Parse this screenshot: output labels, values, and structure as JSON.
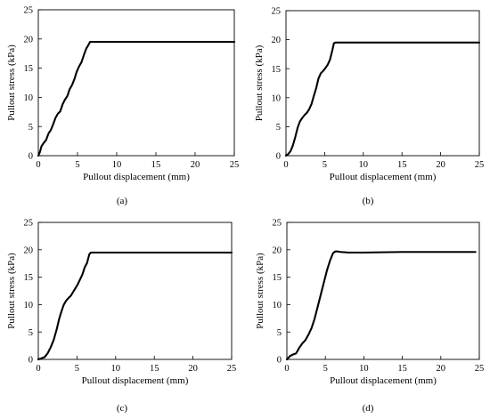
{
  "chart_data": [
    {
      "type": "line",
      "panel_label": "(a)",
      "xlabel": "Pullout displacement (mm)",
      "ylabel": "Pullout stress (kPa)",
      "xlim": [
        0,
        25
      ],
      "ylim": [
        0,
        25
      ],
      "x_ticks": [
        0,
        5,
        10,
        15,
        20,
        25
      ],
      "y_ticks": [
        0,
        5,
        10,
        15,
        20,
        25
      ],
      "grid": false,
      "series": [
        {
          "color": "#000000",
          "x": [
            0,
            0.2,
            0.4,
            0.7,
            1.0,
            1.3,
            1.6,
            1.9,
            2.2,
            2.5,
            2.8,
            3.1,
            3.4,
            3.7,
            4.0,
            4.3,
            4.6,
            4.9,
            5.2,
            5.5,
            5.8,
            6.1,
            6.4,
            6.6,
            6.8,
            8,
            10,
            15,
            20,
            25
          ],
          "y": [
            0,
            0.6,
            1.6,
            2.2,
            2.7,
            3.8,
            4.4,
            5.4,
            6.5,
            7.2,
            7.6,
            8.8,
            9.6,
            10.2,
            11.4,
            12.1,
            13.1,
            14.4,
            15.3,
            16.0,
            17.2,
            18.3,
            19.0,
            19.5,
            19.5,
            19.5,
            19.5,
            19.5,
            19.5,
            19.5
          ]
        }
      ]
    },
    {
      "type": "line",
      "panel_label": "(b)",
      "xlabel": "Pullout displacement (mm)",
      "ylabel": "Pullout stress (kPa)",
      "xlim": [
        0,
        25
      ],
      "ylim": [
        0,
        25
      ],
      "x_ticks": [
        0,
        5,
        10,
        15,
        20,
        25
      ],
      "y_ticks": [
        0,
        5,
        10,
        15,
        20,
        25
      ],
      "grid": false,
      "series": [
        {
          "color": "#000000",
          "x": [
            0,
            0.3,
            0.6,
            0.9,
            1.2,
            1.5,
            1.8,
            2.1,
            2.4,
            2.7,
            3.0,
            3.3,
            3.6,
            3.9,
            4.2,
            4.5,
            4.8,
            5.1,
            5.4,
            5.7,
            6.0,
            6.2,
            6.4,
            7,
            10,
            15,
            20,
            25
          ],
          "y": [
            0,
            0.3,
            0.8,
            1.8,
            3.2,
            4.8,
            5.9,
            6.5,
            7.0,
            7.4,
            8.0,
            8.9,
            10.3,
            11.6,
            13.3,
            14.2,
            14.6,
            15.1,
            15.7,
            16.6,
            18.2,
            19.4,
            19.5,
            19.5,
            19.5,
            19.5,
            19.5,
            19.5
          ]
        }
      ]
    },
    {
      "type": "line",
      "panel_label": "(c)",
      "xlabel": "Pullout displacement (mm)",
      "ylabel": "Pullout stress (kPa)",
      "xlim": [
        0,
        25
      ],
      "ylim": [
        0,
        25
      ],
      "x_ticks": [
        0,
        5,
        10,
        15,
        20,
        25
      ],
      "y_ticks": [
        0,
        5,
        10,
        15,
        20,
        25
      ],
      "grid": false,
      "series": [
        {
          "color": "#000000",
          "x": [
            0,
            0.4,
            0.8,
            1.2,
            1.6,
            2.0,
            2.4,
            2.7,
            3.0,
            3.3,
            3.6,
            3.9,
            4.2,
            4.5,
            4.8,
            5.1,
            5.4,
            5.7,
            6.0,
            6.3,
            6.6,
            6.8,
            7.5,
            10,
            15,
            20,
            25
          ],
          "y": [
            0,
            0.2,
            0.4,
            1.1,
            2.2,
            3.6,
            5.6,
            7.4,
            8.8,
            10.0,
            10.7,
            11.2,
            11.6,
            12.3,
            13.0,
            13.7,
            14.6,
            15.5,
            16.8,
            17.6,
            19.2,
            19.5,
            19.5,
            19.5,
            19.5,
            19.5,
            19.5
          ]
        }
      ]
    },
    {
      "type": "line",
      "panel_label": "(d)",
      "xlabel": "Pullout displacement (mm)",
      "ylabel": "Pullout stress (kPa)",
      "xlim": [
        0,
        25
      ],
      "ylim": [
        0,
        25
      ],
      "x_ticks": [
        0,
        5,
        10,
        15,
        20,
        25
      ],
      "y_ticks": [
        0,
        5,
        10,
        15,
        20,
        25
      ],
      "grid": false,
      "series": [
        {
          "color": "#000000",
          "x": [
            0,
            0.4,
            0.8,
            1.2,
            1.6,
            2.0,
            2.4,
            2.8,
            3.2,
            3.6,
            4.0,
            4.4,
            4.8,
            5.2,
            5.6,
            6.0,
            6.3,
            6.6,
            7.0,
            8,
            10,
            15,
            20,
            24.5
          ],
          "y": [
            0,
            0.6,
            0.9,
            1.1,
            2.1,
            2.9,
            3.5,
            4.5,
            5.7,
            7.4,
            9.6,
            11.8,
            14.0,
            16.2,
            18.0,
            19.4,
            19.7,
            19.7,
            19.6,
            19.5,
            19.5,
            19.6,
            19.6,
            19.6
          ]
        }
      ]
    }
  ]
}
